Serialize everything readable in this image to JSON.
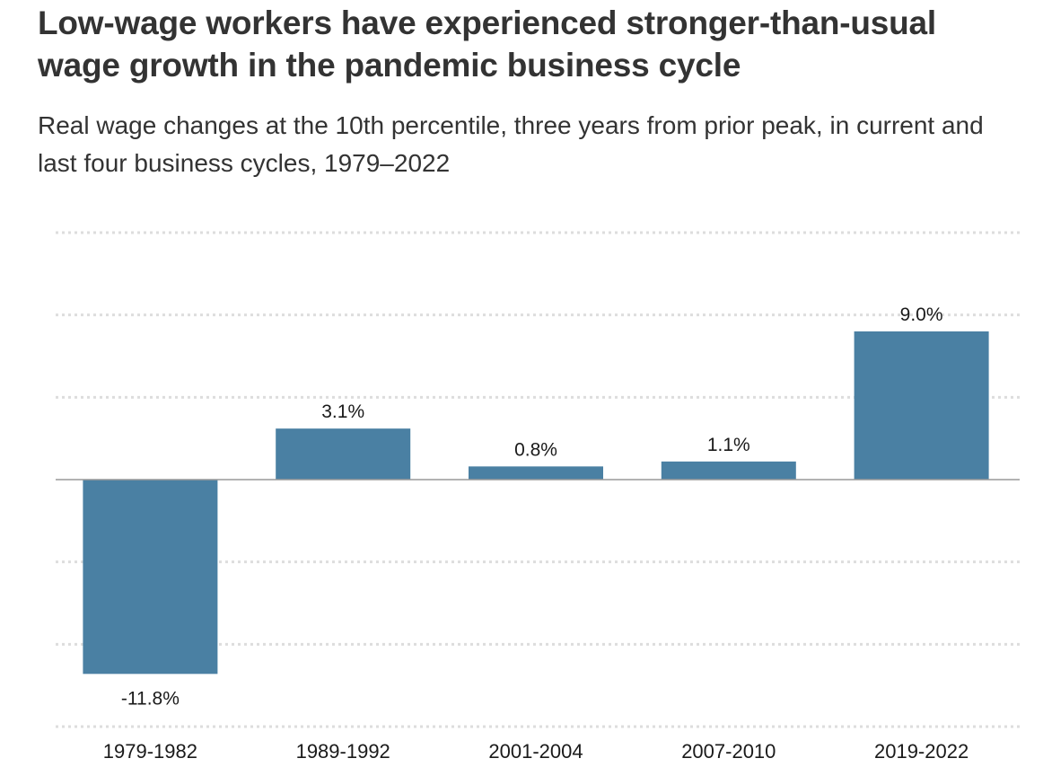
{
  "title": "Low-wage workers have experienced stronger-than-usual wage growth in the pandemic business cycle",
  "subtitle": "Real wage changes at the 10th percentile, three years from prior peak, in current and last four business cycles, 1979–2022",
  "colors": {
    "bar": "#4a80a3",
    "grid": "#dddddd",
    "zero_line": "#999999",
    "text": "#333333"
  },
  "chart_data": {
    "type": "bar",
    "title": "Low-wage workers have experienced stronger-than-usual wage growth in the pandemic business cycle",
    "subtitle": "Real wage changes at the 10th percentile, three years from prior peak, in current and last four business cycles, 1979–2022",
    "categories": [
      "1979-1982",
      "1989-1992",
      "2001-2004",
      "2007-2010",
      "2019-2022"
    ],
    "values": [
      -11.8,
      3.1,
      0.8,
      1.1,
      9.0
    ],
    "value_labels": [
      "-11.8%",
      "3.1%",
      "0.8%",
      "1.1%",
      "9.0%"
    ],
    "xlabel": "",
    "ylabel": "",
    "ylim": [
      -15,
      15
    ],
    "grid_values": [
      15,
      10,
      5,
      0,
      -5,
      -10,
      -15
    ],
    "grid": true,
    "legend": "none"
  }
}
